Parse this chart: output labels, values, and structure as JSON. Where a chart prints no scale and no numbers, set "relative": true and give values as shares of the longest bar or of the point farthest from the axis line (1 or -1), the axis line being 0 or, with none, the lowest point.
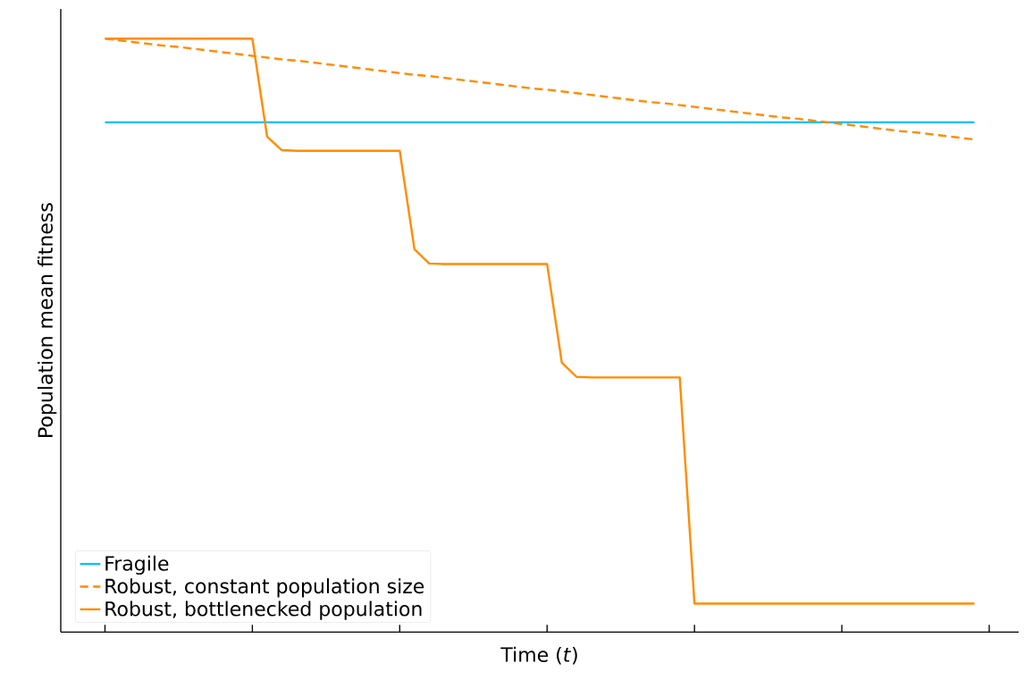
{
  "chart_data": {
    "type": "line",
    "relative": true,
    "xlabel": "Time (*t*)",
    "ylabel": "Population mean fitness",
    "legend": "bottom left",
    "categories": [
      null,
      null,
      null,
      null,
      null,
      null,
      null,
      null,
      null,
      null,
      null,
      null,
      null,
      null,
      null,
      null,
      null,
      null,
      null,
      null,
      null,
      null,
      null,
      null,
      null,
      null,
      null,
      null,
      null,
      null,
      null,
      null,
      null,
      null,
      null,
      null,
      null,
      null,
      null,
      null,
      null,
      null,
      null,
      null,
      null,
      null,
      null,
      null,
      null,
      null,
      null,
      null,
      null,
      null,
      null,
      null,
      null,
      null,
      null,
      null
    ],
    "series": [
      {
        "name": "Fragile",
        "color": "#00bfff",
        "line_style": "solid",
        "values": [
          0.859,
          0.859,
          0.859,
          0.859,
          0.859,
          0.859,
          0.859,
          0.859,
          0.859,
          0.859,
          0.859,
          0.859,
          0.859,
          0.859,
          0.859,
          0.859,
          0.859,
          0.859,
          0.859,
          0.859,
          0.859,
          0.859,
          0.859,
          0.859,
          0.859,
          0.859,
          0.859,
          0.859,
          0.859,
          0.859,
          0.859,
          0.859,
          0.859,
          0.859,
          0.859,
          0.859,
          0.859,
          0.859,
          0.859,
          0.859,
          0.859,
          0.859,
          0.859,
          0.859,
          0.859,
          0.859,
          0.859,
          0.859,
          0.859,
          0.859,
          0.859,
          0.859,
          0.859,
          0.859,
          0.859,
          0.859,
          0.859,
          0.859,
          0.859,
          0.859
        ]
      },
      {
        "name": "Robust, constant population size",
        "color": "#ff8c00",
        "line_style": "dashed",
        "values": [
          1.0,
          0.997,
          0.994,
          0.991,
          0.988,
          0.986,
          0.983,
          0.98,
          0.977,
          0.974,
          0.971,
          0.968,
          0.965,
          0.963,
          0.96,
          0.957,
          0.954,
          0.951,
          0.948,
          0.945,
          0.942,
          0.939,
          0.937,
          0.934,
          0.931,
          0.928,
          0.925,
          0.922,
          0.919,
          0.916,
          0.914,
          0.911,
          0.908,
          0.905,
          0.902,
          0.899,
          0.896,
          0.893,
          0.891,
          0.888,
          0.885,
          0.882,
          0.879,
          0.876,
          0.873,
          0.87,
          0.867,
          0.865,
          0.862,
          0.859,
          0.856,
          0.853,
          0.85,
          0.847,
          0.844,
          0.842,
          0.839,
          0.836,
          0.833,
          0.83
        ]
      },
      {
        "name": "Robust, bottlenecked population",
        "color": "#ff8c00",
        "line_style": "solid",
        "values": [
          1.0,
          1.0,
          1.0,
          1.0,
          1.0,
          1.0,
          1.0,
          1.0,
          1.0,
          1.0,
          1.0,
          0.835,
          0.812,
          0.811,
          0.811,
          0.811,
          0.811,
          0.811,
          0.811,
          0.811,
          0.811,
          0.645,
          0.621,
          0.62,
          0.62,
          0.62,
          0.62,
          0.62,
          0.62,
          0.62,
          0.62,
          0.454,
          0.43,
          0.429,
          0.429,
          0.429,
          0.429,
          0.429,
          0.429,
          0.429,
          0.048,
          0.048,
          0.048,
          0.048,
          0.048,
          0.048,
          0.048,
          0.048,
          0.048,
          0.048,
          0.048,
          0.048,
          0.048,
          0.048,
          0.048,
          0.048,
          0.048,
          0.048,
          0.048,
          0.048
        ]
      }
    ]
  }
}
